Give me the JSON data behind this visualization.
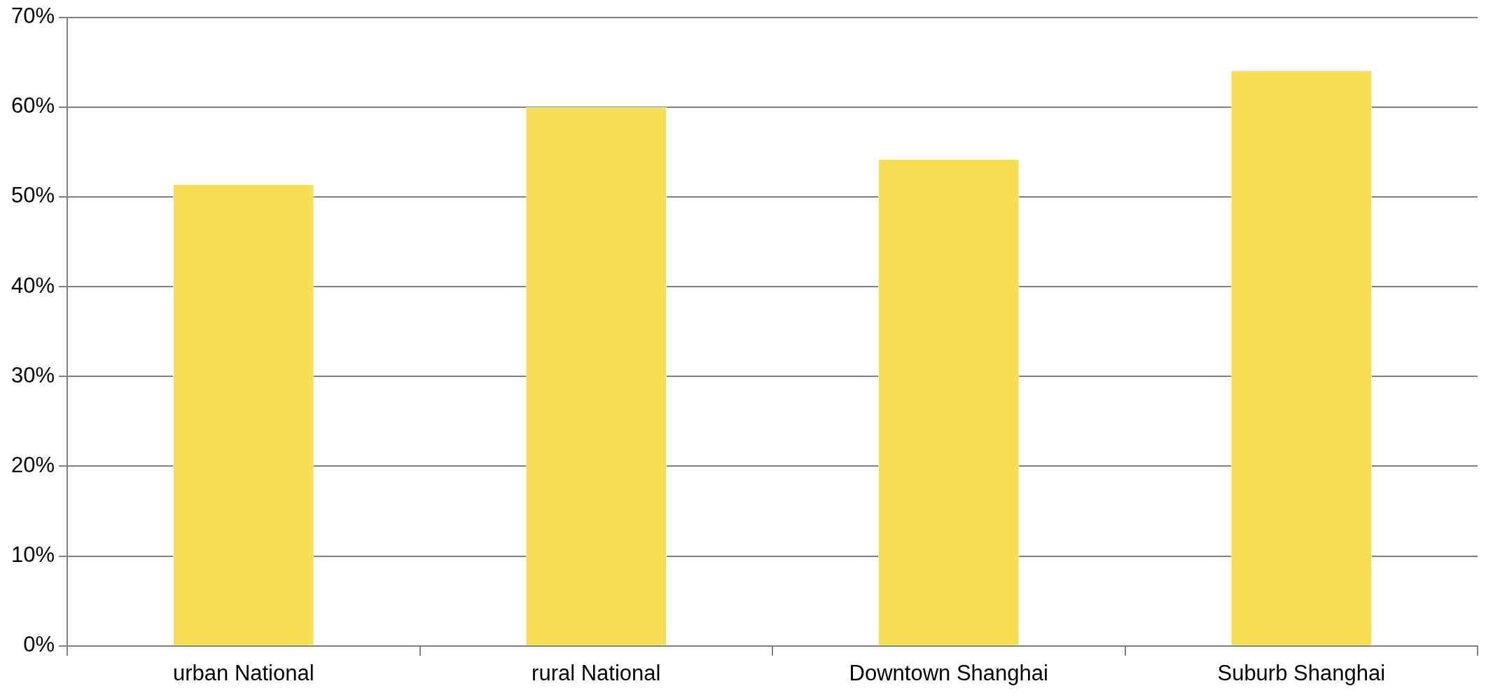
{
  "chart_data": {
    "type": "bar",
    "categories": [
      "urban National",
      "rural National",
      "Downtown Shanghai",
      "Suburb Shanghai"
    ],
    "values": [
      51.4,
      60,
      54.2,
      64.1
    ],
    "color": "#f8de53",
    "ylim": [
      0,
      70
    ],
    "yticks": [
      {
        "value": 0,
        "label": "0%"
      },
      {
        "value": 10,
        "label": "10%"
      },
      {
        "value": 20,
        "label": "20%"
      },
      {
        "value": 30,
        "label": "30%"
      },
      {
        "value": 40,
        "label": "40%"
      },
      {
        "value": 50,
        "label": "50%"
      },
      {
        "value": 60,
        "label": "60%"
      },
      {
        "value": 70,
        "label": "70%"
      }
    ],
    "grid": "y",
    "legend": false
  }
}
